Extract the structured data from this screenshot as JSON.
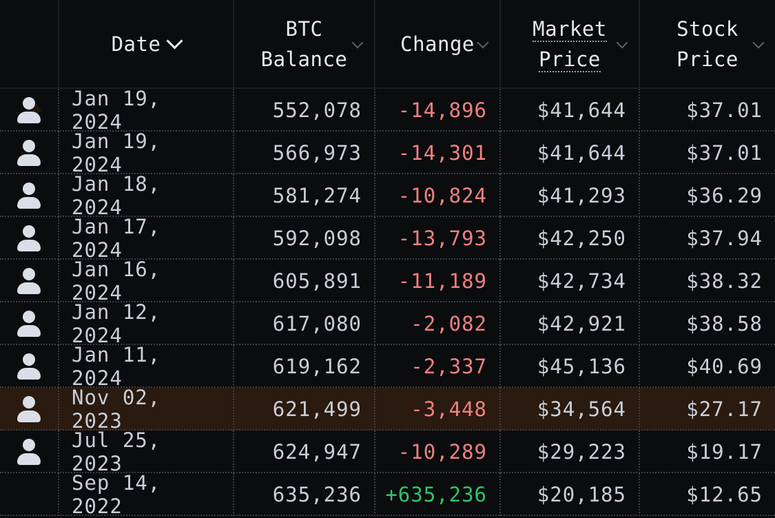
{
  "header": {
    "columns": [
      {
        "line1": "Date",
        "line2": ""
      },
      {
        "line1": "BTC",
        "line2": "Balance"
      },
      {
        "line1": "Change",
        "line2": ""
      },
      {
        "line1": "Market",
        "line2": "Price"
      },
      {
        "line1": "Stock",
        "line2": "Price"
      }
    ]
  },
  "rows": [
    {
      "date": "Jan 19, 2024",
      "balance": "552,078",
      "change": "-14,896",
      "market_price": "$41,644",
      "stock_price": "$37.01",
      "has_icon": true
    },
    {
      "date": "Jan 19, 2024",
      "balance": "566,973",
      "change": "-14,301",
      "market_price": "$41,644",
      "stock_price": "$37.01",
      "has_icon": true
    },
    {
      "date": "Jan 18, 2024",
      "balance": "581,274",
      "change": "-10,824",
      "market_price": "$41,293",
      "stock_price": "$36.29",
      "has_icon": true
    },
    {
      "date": "Jan 17, 2024",
      "balance": "592,098",
      "change": "-13,793",
      "market_price": "$42,250",
      "stock_price": "$37.94",
      "has_icon": true
    },
    {
      "date": "Jan 16, 2024",
      "balance": "605,891",
      "change": "-11,189",
      "market_price": "$42,734",
      "stock_price": "$38.32",
      "has_icon": true
    },
    {
      "date": "Jan 12, 2024",
      "balance": "617,080",
      "change": "-2,082",
      "market_price": "$42,921",
      "stock_price": "$38.58",
      "has_icon": true
    },
    {
      "date": "Jan 11, 2024",
      "balance": "619,162",
      "change": "-2,337",
      "market_price": "$45,136",
      "stock_price": "$40.69",
      "has_icon": true
    },
    {
      "date": "Nov 02, 2023",
      "balance": "621,499",
      "change": "-3,448",
      "market_price": "$34,564",
      "stock_price": "$27.17",
      "has_icon": true,
      "highlighted": true
    },
    {
      "date": "Jul 25, 2023",
      "balance": "624,947",
      "change": "-10,289",
      "market_price": "$29,223",
      "stock_price": "$19.17",
      "has_icon": true
    },
    {
      "date": "Sep 14, 2022",
      "balance": "635,236",
      "change": "+635,236",
      "market_price": "$20,185",
      "stock_price": "$12.65",
      "has_icon": false
    }
  ],
  "colors": {
    "negative": "#f08080",
    "positive": "#2ec46b",
    "highlight_row": "#2a1a0f"
  },
  "icons": {
    "row_icon": "person-icon",
    "sort_icon": "chevron-down-icon"
  }
}
